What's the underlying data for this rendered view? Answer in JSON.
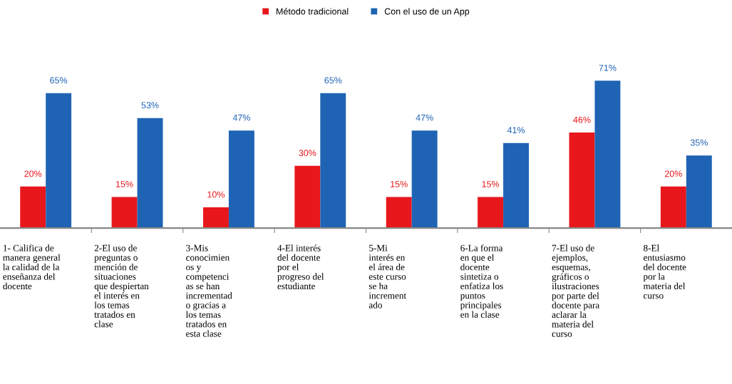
{
  "chart_data": {
    "type": "bar",
    "categories": [
      "1- Califica de\nmanera general\nla calidad de la\nenseñanza del\ndocente",
      "2-El uso de\npreguntas o\nmención de\nsituaciones\nque despiertan\nel interés en\nlos temas\ntratados en\nclase",
      "3-Mis\nconocimien\nos y\ncompetenci\nas se han\nincrementad\no gracias a\nlos temas\ntratados en\nesta clase",
      "4-El interés\ndel docente\npor el\nprogreso del\nestudiante",
      "5-Mi\ninterés en\nel área de\neste curso\nse ha\nincrement\nado",
      "6-La forma\nen que el\ndocente\nsintetiza o\nenfatiza los\npuntos\nprincipales\nen la clase",
      "7-El uso de\nejemplos,\nesquemas,\ngráficos o\nilustraciones\npor parte del\ndocente para\naclarar la\nmateria del\ncurso",
      "8-El\nentusiasmo\ndel docente\npor la\nmateria del\ncurso"
    ],
    "series": [
      {
        "name": "Método tradicional",
        "color": "#e8171b",
        "values": [
          20,
          15,
          10,
          30,
          15,
          15,
          46,
          20
        ],
        "value_labels": [
          "20%",
          "15%",
          "10%",
          "30%",
          "15%",
          "15%",
          "46%",
          "20%"
        ]
      },
      {
        "name": "Con el uso de un App",
        "color": "#1f64b4",
        "values": [
          65,
          53,
          47,
          65,
          47,
          41,
          71,
          35
        ],
        "value_labels": [
          "65%",
          "53%",
          "47%",
          "65%",
          "47%",
          "41%",
          "71%",
          "35%"
        ]
      }
    ],
    "legend": "top"
  }
}
